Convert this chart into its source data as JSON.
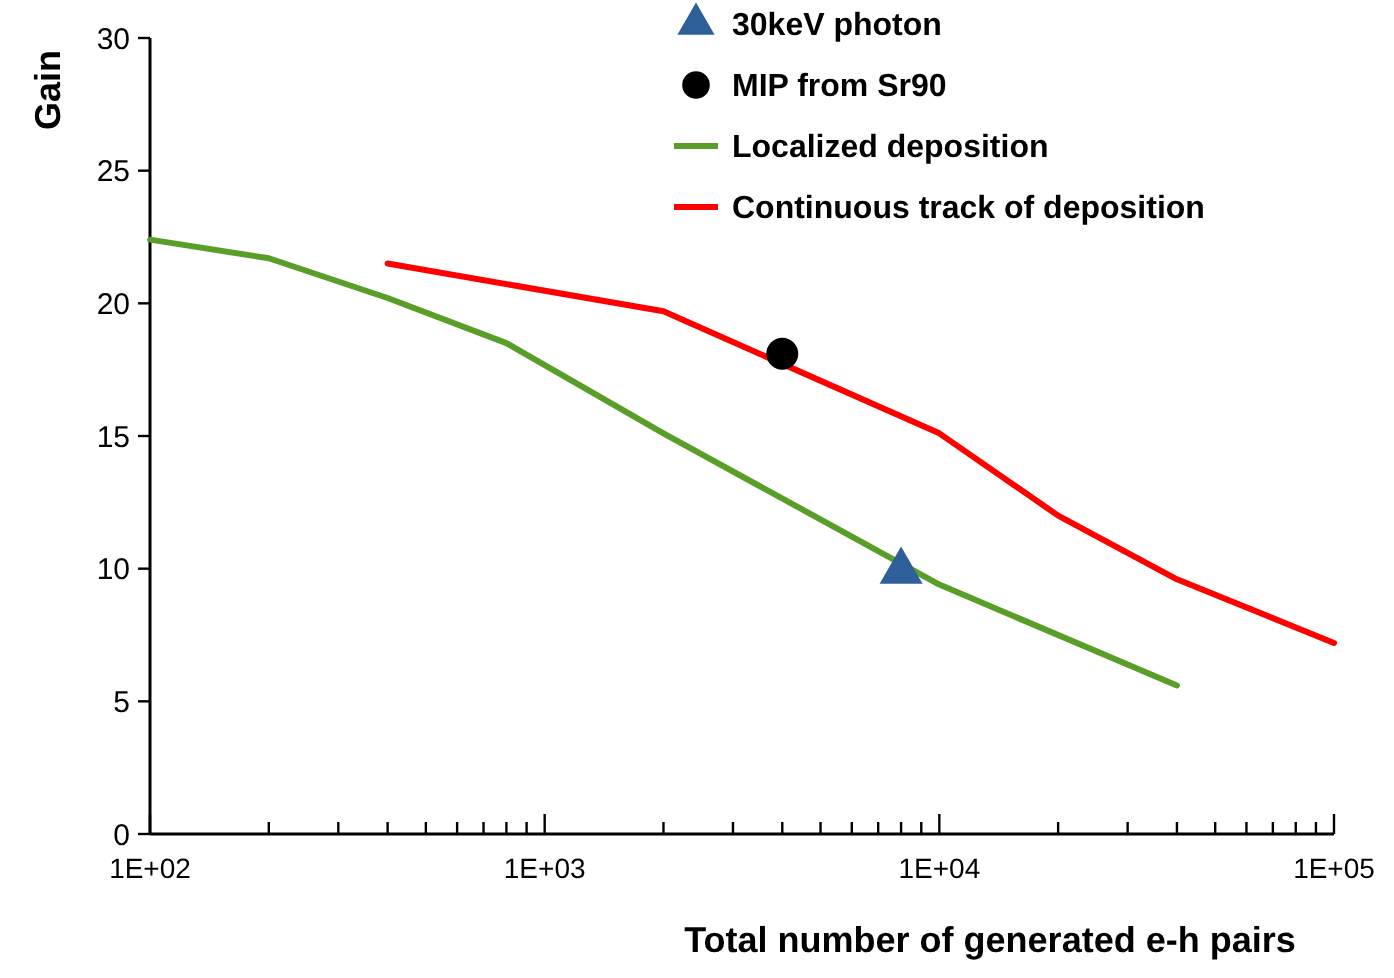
{
  "chart_data": {
    "type": "line",
    "xlabel": "Total number of generated e-h pairs",
    "ylabel": "Gain",
    "log": "x",
    "grid": false,
    "legend": "top right",
    "xlim": [
      100,
      100000
    ],
    "xticks": [
      {
        "value": 100,
        "label": "1E+02"
      },
      {
        "value": 200,
        "label": null
      },
      {
        "value": 300,
        "label": null
      },
      {
        "value": 400,
        "label": null
      },
      {
        "value": 500,
        "label": null
      },
      {
        "value": 600,
        "label": null
      },
      {
        "value": 700,
        "label": null
      },
      {
        "value": 800,
        "label": null
      },
      {
        "value": 900,
        "label": null
      },
      {
        "value": 1000,
        "label": "1E+03"
      },
      {
        "value": 2000,
        "label": null
      },
      {
        "value": 3000,
        "label": null
      },
      {
        "value": 4000,
        "label": null
      },
      {
        "value": 5000,
        "label": null
      },
      {
        "value": 6000,
        "label": null
      },
      {
        "value": 7000,
        "label": null
      },
      {
        "value": 8000,
        "label": null
      },
      {
        "value": 9000,
        "label": null
      },
      {
        "value": 10000,
        "label": "1E+04"
      },
      {
        "value": 20000,
        "label": null
      },
      {
        "value": 30000,
        "label": null
      },
      {
        "value": 40000,
        "label": null
      },
      {
        "value": 50000,
        "label": null
      },
      {
        "value": 60000,
        "label": null
      },
      {
        "value": 70000,
        "label": null
      },
      {
        "value": 80000,
        "label": null
      },
      {
        "value": 90000,
        "label": null
      },
      {
        "value": 100000,
        "label": "1E+05"
      }
    ],
    "ylim": [
      0,
      30
    ],
    "yticks": [
      0,
      5,
      10,
      15,
      20,
      25,
      30
    ],
    "series": [
      {
        "name": "30keV photon",
        "type": "scatter",
        "marker": "triangle",
        "color": "#2f5f98",
        "x": [
          8000
        ],
        "values": [
          9.9
        ]
      },
      {
        "name": "MIP from Sr90",
        "type": "scatter",
        "marker": "circle",
        "color": "#000000",
        "x": [
          4000
        ],
        "values": [
          18.1
        ]
      },
      {
        "name": "Localized deposition",
        "marker": "none",
        "color": "#5a9e2a",
        "x": [
          100,
          200,
          400,
          800,
          2000,
          10000,
          40000
        ],
        "values": [
          22.4,
          21.7,
          20.2,
          18.5,
          15.1,
          9.4,
          5.6
        ]
      },
      {
        "name": "Continuous track of deposition",
        "marker": "none",
        "color": "#ff0000",
        "x": [
          400,
          2000,
          10000,
          20000,
          40000,
          100000
        ],
        "values": [
          21.5,
          19.7,
          15.1,
          12.0,
          9.6,
          7.2
        ]
      }
    ]
  }
}
